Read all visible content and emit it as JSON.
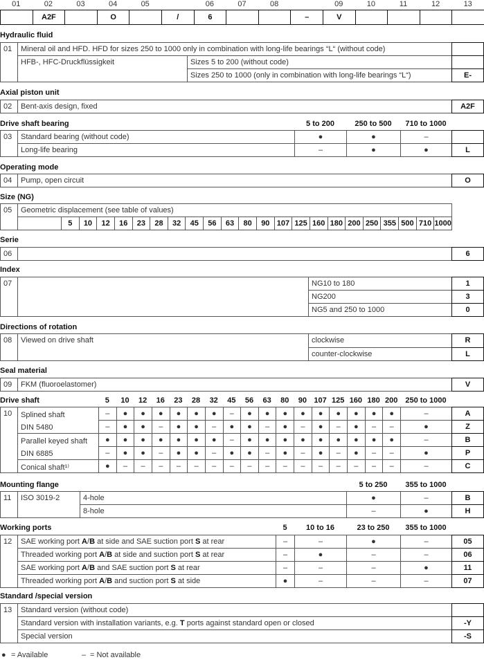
{
  "type_code": {
    "positions": [
      "01",
      "02",
      "03",
      "04",
      "05",
      "06",
      "07",
      "08",
      "09",
      "10",
      "11",
      "12",
      "13"
    ],
    "boxes": [
      "",
      "A2F",
      "",
      "O",
      "",
      "/",
      "6",
      "",
      "",
      "–",
      "V",
      "",
      "",
      "",
      ""
    ]
  },
  "hydraulic_fluid": {
    "heading": "Hydraulic fluid",
    "num": "01",
    "row1": "Mineral oil and HFD. HFD for sizes 250 to 1000 only in combination with long-life bearings “L“ (without code)",
    "row2_label": "HFB-, HFC-Druckflüssigkeit",
    "row2": "Sizes 5 to 200 (without code)",
    "row3": "Sizes 250 to 1000 (only in combination with long-life bearings “L“)",
    "codes": [
      "",
      "",
      "E-"
    ]
  },
  "axial_piston_unit": {
    "heading": "Axial piston unit",
    "num": "02",
    "text": "Bent-axis design, fixed",
    "code": "A2F"
  },
  "drive_shaft_bearing": {
    "heading": "Drive shaft bearing",
    "num": "03",
    "columns": [
      "5 to 200",
      "250 to 500",
      "710 to 1000"
    ],
    "rows": [
      {
        "label": "Standard bearing (without code)",
        "values": [
          "●",
          "●",
          "–"
        ],
        "code": ""
      },
      {
        "label": "Long-life bearing",
        "values": [
          "–",
          "●",
          "●"
        ],
        "code": "L"
      }
    ]
  },
  "operating_mode": {
    "heading": "Operating mode",
    "num": "04",
    "text": "Pump, open circuit",
    "code": "O"
  },
  "size": {
    "heading": "Size (NG)",
    "num": "05",
    "text": "Geometric displacement (see table of values)",
    "values": [
      "5",
      "10",
      "12",
      "16",
      "23",
      "28",
      "32",
      "45",
      "56",
      "63",
      "80",
      "90",
      "107",
      "125",
      "160",
      "180",
      "200",
      "250",
      "355",
      "500",
      "710",
      "1000"
    ]
  },
  "serie": {
    "heading": "Serie",
    "num": "06",
    "code": "6"
  },
  "index": {
    "heading": "Index",
    "num": "07",
    "rows": [
      {
        "label": "NG10 to 180",
        "code": "1"
      },
      {
        "label": "NG200",
        "code": "3"
      },
      {
        "label": "NG5 and 250 to 1000",
        "code": "0"
      }
    ]
  },
  "rotation": {
    "heading": "Directions of rotation",
    "num": "08",
    "text": "Viewed on drive shaft",
    "rows": [
      {
        "label": "clockwise",
        "code": "R"
      },
      {
        "label": "counter-clockwise",
        "code": "L"
      }
    ]
  },
  "seal": {
    "heading": "Seal material",
    "num": "09",
    "text": "FKM (fluoroelastomer)",
    "code": "V"
  },
  "drive_shaft": {
    "heading": "Drive shaft",
    "num": "10",
    "columns": [
      "5",
      "10",
      "12",
      "16",
      "23",
      "28",
      "32",
      "45",
      "56",
      "63",
      "80",
      "90",
      "107",
      "125",
      "160",
      "180",
      "200",
      "250 to 1000"
    ],
    "groups": [
      {
        "label": [
          "Splined shaft",
          "DIN 5480"
        ],
        "rows": [
          {
            "values": [
              "–",
              "●",
              "●",
              "●",
              "●",
              "●",
              "●",
              "–",
              "●",
              "●",
              "●",
              "●",
              "●",
              "●",
              "●",
              "●",
              "●",
              "–"
            ],
            "code": "A"
          },
          {
            "values": [
              "–",
              "●",
              "●",
              "–",
              "●",
              "●",
              "–",
              "●",
              "●",
              "–",
              "●",
              "–",
              "●",
              "–",
              "●",
              "–",
              "–",
              "●"
            ],
            "code": "Z"
          }
        ]
      },
      {
        "label": [
          "Parallel keyed shaft",
          "DIN 6885"
        ],
        "rows": [
          {
            "values": [
              "●",
              "●",
              "●",
              "●",
              "●",
              "●",
              "●",
              "–",
              "●",
              "●",
              "●",
              "●",
              "●",
              "●",
              "●",
              "●",
              "●",
              "–"
            ],
            "code": "B"
          },
          {
            "values": [
              "–",
              "●",
              "●",
              "–",
              "●",
              "●",
              "–",
              "●",
              "●",
              "–",
              "●",
              "–",
              "●",
              "–",
              "●",
              "–",
              "–",
              "●"
            ],
            "code": "P"
          }
        ]
      },
      {
        "label": [
          "Conical shaft¹⁾"
        ],
        "rows": [
          {
            "values": [
              "●",
              "–",
              "–",
              "–",
              "–",
              "–",
              "–",
              "–",
              "–",
              "–",
              "–",
              "–",
              "–",
              "–",
              "–",
              "–",
              "–",
              "–"
            ],
            "code": "C"
          }
        ]
      }
    ]
  },
  "mounting_flange": {
    "heading": "Mounting flange",
    "num": "11",
    "label": "ISO 3019-2",
    "columns": [
      "5 to 250",
      "355 to 1000"
    ],
    "rows": [
      {
        "label": "4-hole",
        "values": [
          "●",
          "–"
        ],
        "code": "B"
      },
      {
        "label": "8-hole",
        "values": [
          "–",
          "●"
        ],
        "code": "H"
      }
    ]
  },
  "working_ports": {
    "heading": "Working ports",
    "num": "12",
    "columns": [
      "5",
      "10 to 16",
      "23 to 250",
      "355 to 1000"
    ],
    "rows": [
      {
        "label": [
          [
            "SAE working port ",
            0
          ],
          [
            "A",
            1
          ],
          [
            "/",
            0
          ],
          [
            "B",
            1
          ],
          [
            " at side and SAE suction port ",
            0
          ],
          [
            "S",
            1
          ],
          [
            " at rear",
            0
          ]
        ],
        "values": [
          "–",
          "–",
          "●",
          "–"
        ],
        "code": "05"
      },
      {
        "label": [
          [
            "Threaded working port ",
            0
          ],
          [
            "A",
            1
          ],
          [
            "/",
            0
          ],
          [
            "B",
            1
          ],
          [
            " at side and suction port ",
            0
          ],
          [
            "S",
            1
          ],
          [
            " at rear",
            0
          ]
        ],
        "values": [
          "–",
          "●",
          "–",
          "–"
        ],
        "code": "06"
      },
      {
        "label": [
          [
            "SAE working port ",
            0
          ],
          [
            "A",
            1
          ],
          [
            "/",
            0
          ],
          [
            "B",
            1
          ],
          [
            " and SAE suction port ",
            0
          ],
          [
            "S",
            1
          ],
          [
            " at rear",
            0
          ]
        ],
        "values": [
          "–",
          "–",
          "–",
          "●"
        ],
        "code": "11"
      },
      {
        "label": [
          [
            "Threaded working port ",
            0
          ],
          [
            "A",
            1
          ],
          [
            "/",
            0
          ],
          [
            "B",
            1
          ],
          [
            " and suction port ",
            0
          ],
          [
            "S",
            1
          ],
          [
            " at side",
            0
          ]
        ],
        "values": [
          "●",
          "–",
          "–",
          "–"
        ],
        "code": "07"
      }
    ]
  },
  "standard_version": {
    "heading": "Standard /special version",
    "num": "13",
    "rows": [
      {
        "label": [
          [
            "Standard version (without code)",
            0
          ]
        ],
        "code": ""
      },
      {
        "label": [
          [
            "Standard version with installation variants, e.g. ",
            0
          ],
          [
            "T",
            1
          ],
          [
            " ports against standard open or closed",
            0
          ]
        ],
        "code": "-Y"
      },
      {
        "label": [
          [
            "Special version",
            0
          ]
        ],
        "code": "-S"
      }
    ]
  },
  "legend": {
    "available_symbol": "●",
    "available": "=  Available",
    "not_available_symbol": "–",
    "not_available": "=  Not available"
  }
}
